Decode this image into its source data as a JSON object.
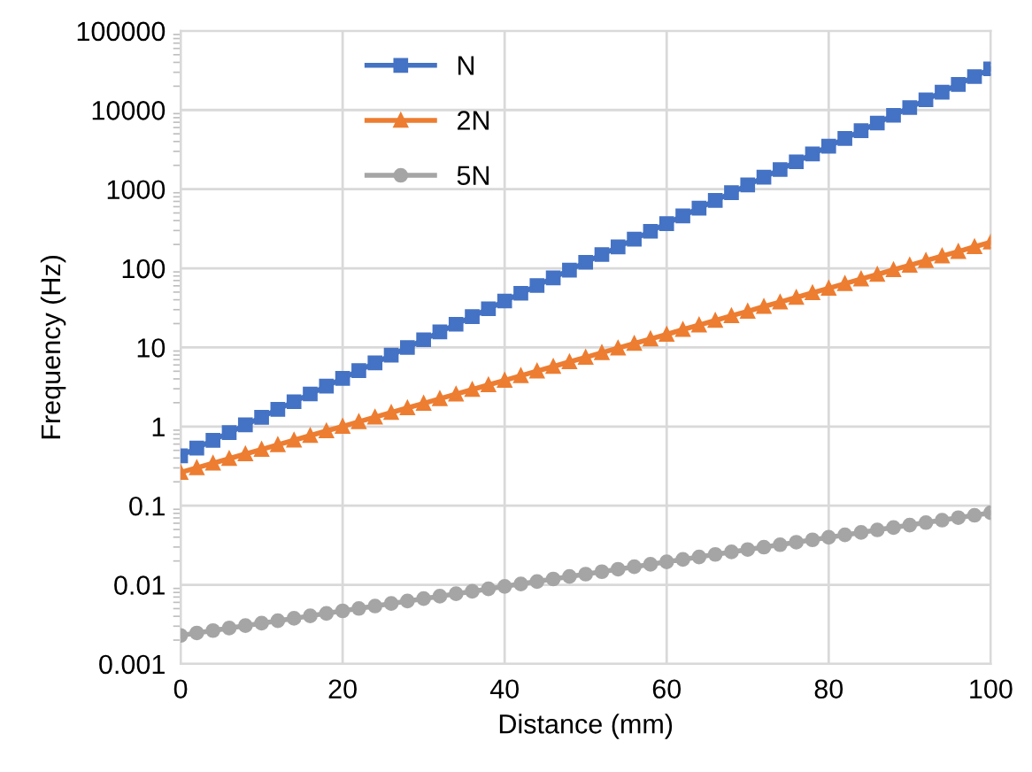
{
  "chart_data": {
    "type": "line",
    "xlabel": "Distance (mm)",
    "ylabel": "Frequency (Hz)",
    "x": [
      0,
      2,
      4,
      6,
      8,
      10,
      12,
      14,
      16,
      18,
      20,
      22,
      24,
      26,
      28,
      30,
      32,
      34,
      36,
      38,
      40,
      42,
      44,
      46,
      48,
      50,
      52,
      54,
      56,
      58,
      60,
      62,
      64,
      66,
      68,
      70,
      72,
      74,
      76,
      78,
      80,
      82,
      84,
      86,
      88,
      90,
      92,
      94,
      96,
      98,
      100
    ],
    "series": [
      {
        "name": "N",
        "color": "#4472c4",
        "marker": "square",
        "values": [
          0.427,
          0.535,
          0.67,
          0.838,
          1.05,
          1.31,
          1.65,
          2.06,
          2.58,
          3.24,
          4.06,
          5.09,
          6.37,
          7.97,
          9.98,
          12.5,
          15.7,
          19.6,
          24.5,
          30.8,
          38.6,
          48.3,
          60.5,
          75.7,
          94.9,
          119,
          149,
          186,
          233,
          293,
          367,
          459,
          575,
          720,
          902,
          1130,
          1416,
          1770,
          2215,
          2785,
          3489,
          4363,
          5466,
          6844,
          8575,
          10740,
          13460,
          16830,
          21060,
          26470,
          33170
        ]
      },
      {
        "name": "2N",
        "color": "#ed7d31",
        "marker": "triangle",
        "values": [
          0.263,
          0.301,
          0.344,
          0.393,
          0.45,
          0.514,
          0.588,
          0.672,
          0.769,
          0.879,
          1.004,
          1.15,
          1.314,
          1.501,
          1.719,
          1.963,
          2.246,
          2.566,
          2.937,
          3.357,
          3.83,
          4.39,
          5.02,
          5.73,
          6.56,
          7.5,
          8.58,
          9.8,
          11.2,
          12.8,
          14.6,
          16.8,
          19.2,
          21.9,
          25.1,
          28.6,
          32.8,
          37.4,
          42.8,
          48.9,
          55.9,
          64.0,
          73.2,
          83.6,
          95.7,
          109,
          125,
          143,
          163,
          187,
          214
        ]
      },
      {
        "name": "5N",
        "color": "#a5a5a5",
        "marker": "circle",
        "values": [
          0.00229,
          0.00246,
          0.00264,
          0.00284,
          0.00305,
          0.00327,
          0.00351,
          0.00377,
          0.00405,
          0.00435,
          0.00468,
          0.00502,
          0.00539,
          0.0058,
          0.00623,
          0.00668,
          0.00717,
          0.0077,
          0.00827,
          0.00888,
          0.00955,
          0.01025,
          0.01101,
          0.01184,
          0.01272,
          0.01364,
          0.01464,
          0.01572,
          0.01689,
          0.01813,
          0.0195,
          0.0209,
          0.0225,
          0.0242,
          0.026,
          0.0279,
          0.0299,
          0.0321,
          0.0345,
          0.037,
          0.0398,
          0.0427,
          0.0459,
          0.0494,
          0.053,
          0.0569,
          0.0611,
          0.0656,
          0.0705,
          0.0756,
          0.0813
        ]
      }
    ],
    "log": "y",
    "xlim": [
      0,
      100
    ],
    "xticks": [
      0,
      20,
      40,
      60,
      80,
      100
    ],
    "ylim": [
      0.001,
      100000
    ],
    "yticks": [
      {
        "value": 0.001,
        "label": "0.001"
      },
      {
        "value": 0.01,
        "label": "0.01"
      },
      {
        "value": 0.1,
        "label": "0.1"
      },
      1,
      10,
      100,
      1000,
      10000,
      100000
    ],
    "grid": true,
    "legend": "top left",
    "line_style": "solid"
  }
}
